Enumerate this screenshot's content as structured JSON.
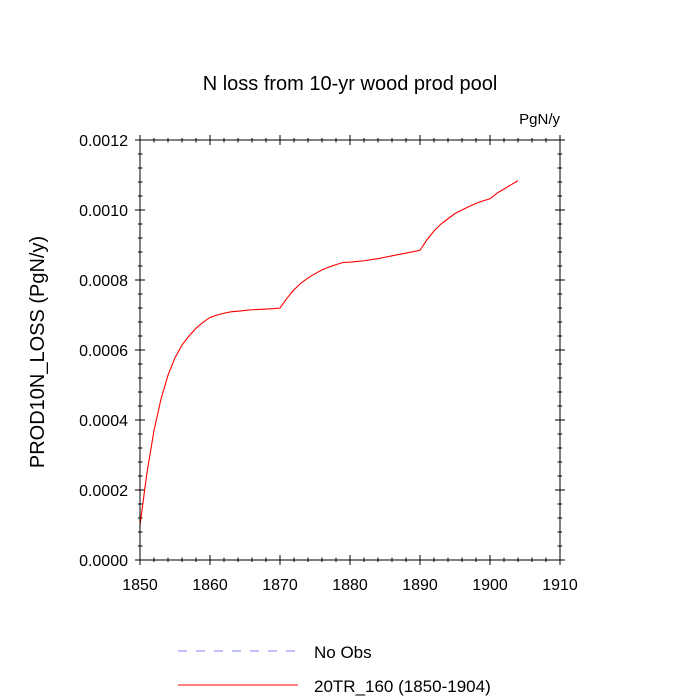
{
  "chart_data": {
    "type": "line",
    "title": "N loss from 10-yr wood prod pool",
    "units_label": "PgN/y",
    "xlabel": "",
    "ylabel": "PROD10N_LOSS  (PgN/y)",
    "xlim": [
      1850,
      1910
    ],
    "ylim": [
      0.0,
      0.0012
    ],
    "x_ticks": [
      1850,
      1860,
      1870,
      1880,
      1890,
      1900,
      1910
    ],
    "x_tick_labels": [
      "1850",
      "1860",
      "1870",
      "1880",
      "1890",
      "1900",
      "1910"
    ],
    "y_ticks": [
      0.0,
      0.0002,
      0.0004,
      0.0006,
      0.0008,
      0.001,
      0.0012
    ],
    "y_tick_labels": [
      "0.0000",
      "0.0002",
      "0.0004",
      "0.0006",
      "0.0008",
      "0.0010",
      "0.0012"
    ],
    "grid": false,
    "legend_position": "bottom",
    "series": [
      {
        "name": "No Obs",
        "color": "#8080ff",
        "style": "dashed",
        "x": [],
        "values": []
      },
      {
        "name": "20TR_160 (1850-1904)",
        "color": "#ff0000",
        "style": "solid",
        "x": [
          1850,
          1851,
          1852,
          1853,
          1854,
          1855,
          1856,
          1857,
          1858,
          1859,
          1860,
          1861,
          1862,
          1863,
          1864,
          1865,
          1866,
          1867,
          1868,
          1869,
          1870,
          1871,
          1872,
          1873,
          1874,
          1875,
          1876,
          1877,
          1878,
          1879,
          1880,
          1881,
          1882,
          1883,
          1884,
          1885,
          1886,
          1887,
          1888,
          1889,
          1890,
          1891,
          1892,
          1893,
          1894,
          1895,
          1896,
          1897,
          1898,
          1899,
          1900,
          1901,
          1902,
          1903,
          1904
        ],
        "values": [
          0.0001,
          0.00025,
          0.00037,
          0.00046,
          0.000528,
          0.000578,
          0.000614,
          0.00064,
          0.000662,
          0.000679,
          0.000693,
          0.0007,
          0.000705,
          0.000709,
          0.000711,
          0.000713,
          0.000715,
          0.000716,
          0.000717,
          0.000718,
          0.00072,
          0.000748,
          0.000772,
          0.000791,
          0.000806,
          0.000818,
          0.000829,
          0.000837,
          0.000844,
          0.00085,
          0.000851,
          0.000853,
          0.000855,
          0.000858,
          0.000861,
          0.000865,
          0.000869,
          0.000873,
          0.000877,
          0.000881,
          0.000885,
          0.000915,
          0.00094,
          0.00096,
          0.000975,
          0.00099,
          0.001,
          0.00101,
          0.001019,
          0.001026,
          0.001032,
          0.001048,
          0.00106,
          0.001072,
          0.001084
        ]
      }
    ]
  }
}
